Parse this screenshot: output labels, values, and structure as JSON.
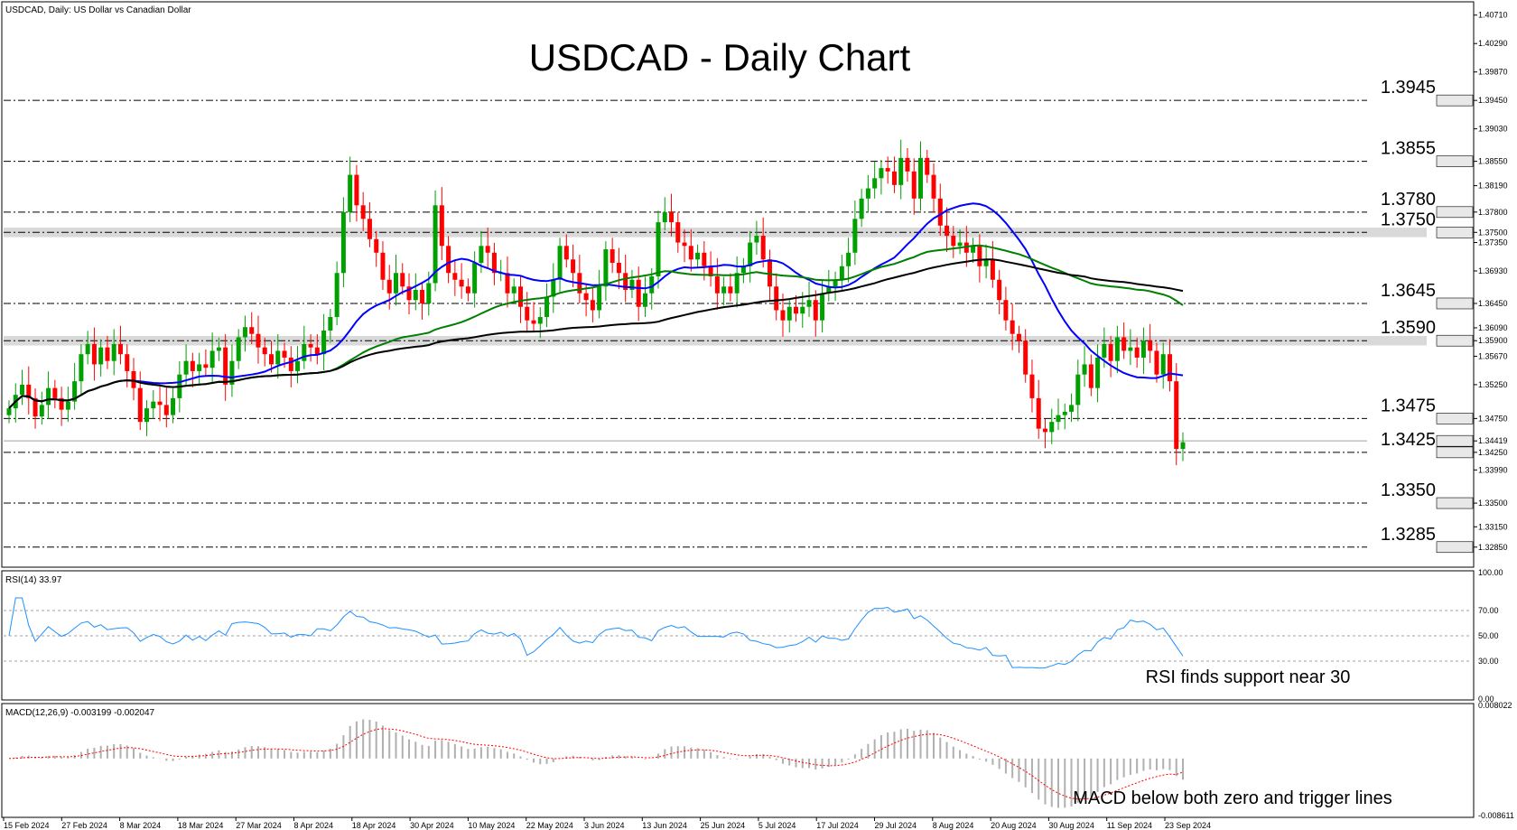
{
  "header": {
    "symbol_info": "USDCAD, Daily:  US Dollar vs Canadian Dollar",
    "title": "USDCAD - Daily Chart"
  },
  "colors": {
    "bull": "#00a000",
    "bear": "#ff0000",
    "ma_fast": "#0000ff",
    "ma_mid": "#008000",
    "ma_slow": "#000000",
    "rsi": "#1e90ff",
    "macd_hist": "#b0b0b0",
    "macd_signal": "#ff0000",
    "level_band": "#d9d9d9"
  },
  "chart_data": [
    {
      "type": "candlestick",
      "title": "USDCAD - Daily Chart",
      "ylim": [
        1.3258,
        1.4088
      ],
      "y_ticks": [
        "1.40710",
        "1.40290",
        "1.39870",
        "1.39450",
        "1.39030",
        "1.38550",
        "1.38190",
        "1.37800",
        "1.37500",
        "1.37350",
        "1.36930",
        "1.36450",
        "1.36090",
        "1.35900",
        "1.35670",
        "1.35250",
        "1.34750",
        "1.34419",
        "1.34250",
        "1.33990",
        "1.33500",
        "1.33150",
        "1.32850"
      ],
      "highlighted_ticks": [
        "1.39450",
        "1.38550",
        "1.37800",
        "1.37500",
        "1.36450",
        "1.35900",
        "1.34750",
        "1.34419",
        "1.34250",
        "1.33500",
        "1.32850"
      ],
      "x_ticks": [
        "15 Feb 2024",
        "27 Feb 2024",
        "8 Mar 2024",
        "18 Mar 2024",
        "27 Mar 2024",
        "8 Apr 2024",
        "18 Apr 2024",
        "30 Apr 2024",
        "10 May 2024",
        "22 May 2024",
        "3 Jun 2024",
        "13 Jun 2024",
        "25 Jun 2024",
        "5 Jul 2024",
        "17 Jul 2024",
        "29 Jul 2024",
        "8 Aug 2024",
        "20 Aug 2024",
        "30 Aug 2024",
        "11 Sep 2024",
        "23 Sep 2024"
      ],
      "levels": [
        {
          "value": 1.3945,
          "label": "1.3945"
        },
        {
          "value": 1.3855,
          "label": "1.3855"
        },
        {
          "value": 1.378,
          "label": "1.3780"
        },
        {
          "value": 1.375,
          "label": "1.3750"
        },
        {
          "value": 1.3645,
          "label": "1.3645"
        },
        {
          "value": 1.359,
          "label": "1.3590"
        },
        {
          "value": 1.3475,
          "label": "1.3475"
        },
        {
          "value": 1.3425,
          "label": "1.3425"
        },
        {
          "value": 1.335,
          "label": "1.3350"
        },
        {
          "value": 1.3285,
          "label": "1.3285"
        }
      ],
      "zones": [
        [
          1.3743,
          1.3757
        ],
        [
          1.3583,
          1.3597
        ]
      ],
      "current_price": 1.34419,
      "closes": [
        1.349,
        1.351,
        1.3525,
        1.3505,
        1.3478,
        1.3495,
        1.352,
        1.3505,
        1.3488,
        1.35,
        1.353,
        1.357,
        1.3585,
        1.3555,
        1.358,
        1.356,
        1.3585,
        1.357,
        1.3545,
        1.352,
        1.347,
        1.349,
        1.35,
        1.3495,
        1.348,
        1.3505,
        1.354,
        1.356,
        1.3545,
        1.3555,
        1.355,
        1.3575,
        1.358,
        1.3525,
        1.356,
        1.3595,
        1.361,
        1.36,
        1.358,
        1.357,
        1.3555,
        1.3575,
        1.3565,
        1.3545,
        1.356,
        1.3585,
        1.358,
        1.357,
        1.3605,
        1.3625,
        1.369,
        1.378,
        1.3835,
        1.379,
        1.377,
        1.374,
        1.372,
        1.368,
        1.366,
        1.369,
        1.367,
        1.365,
        1.3665,
        1.3645,
        1.3675,
        1.379,
        1.373,
        1.369,
        1.368,
        1.367,
        1.366,
        1.3705,
        1.373,
        1.372,
        1.369,
        1.369,
        1.366,
        1.367,
        1.364,
        1.362,
        1.3615,
        1.3625,
        1.3655,
        1.368,
        1.373,
        1.371,
        1.369,
        1.366,
        1.365,
        1.3635,
        1.367,
        1.3725,
        1.3705,
        1.369,
        1.3665,
        1.368,
        1.364,
        1.366,
        1.3685,
        1.3765,
        1.378,
        1.3765,
        1.3735,
        1.373,
        1.371,
        1.372,
        1.37,
        1.3685,
        1.366,
        1.367,
        1.366,
        1.369,
        1.37,
        1.3735,
        1.3745,
        1.371,
        1.367,
        1.3635,
        1.362,
        1.364,
        1.363,
        1.364,
        1.365,
        1.362,
        1.366,
        1.367,
        1.368,
        1.37,
        1.372,
        1.377,
        1.38,
        1.3815,
        1.383,
        1.3845,
        1.384,
        1.382,
        1.386,
        1.384,
        1.38,
        1.386,
        1.3835,
        1.38,
        1.376,
        1.3745,
        1.373,
        1.3735,
        1.372,
        1.373,
        1.37,
        1.371,
        1.368,
        1.365,
        1.362,
        1.36,
        1.359,
        1.354,
        1.3505,
        1.346,
        1.3455,
        1.347,
        1.348,
        1.3485,
        1.3495,
        1.354,
        1.3555,
        1.352,
        1.3565,
        1.3585,
        1.356,
        1.3595,
        1.3575,
        1.358,
        1.3565,
        1.359,
        1.3575,
        1.354,
        1.357,
        1.353,
        1.343,
        1.344
      ],
      "moving_averages": [
        {
          "period_color": "ma_fast",
          "values_start": 1.349,
          "values_end": 1.361
        },
        {
          "period_color": "ma_mid",
          "values_start": 1.35,
          "values_end": 1.363
        },
        {
          "period_color": "ma_slow",
          "values_start": 1.35,
          "values_end": 1.361
        }
      ]
    },
    {
      "type": "line",
      "title": "RSI(14) 33.97",
      "ylim": [
        0,
        100
      ],
      "y_ticks": [
        "100.00",
        "70.00",
        "50.00",
        "30.00",
        "0.00"
      ],
      "levels": [
        70,
        50,
        30
      ],
      "last_value": 33.97,
      "annotation": "RSI finds support near 30"
    },
    {
      "type": "bar",
      "title": "MACD(12,26,9) -0.003199 -0.002047",
      "y_ticks": [
        "0.008022",
        "-0.008611"
      ],
      "ylim": [
        -0.008611,
        0.008022
      ],
      "macd_last": -0.003199,
      "signal_last": -0.002047,
      "annotation": "MACD below both zero and trigger lines"
    }
  ]
}
